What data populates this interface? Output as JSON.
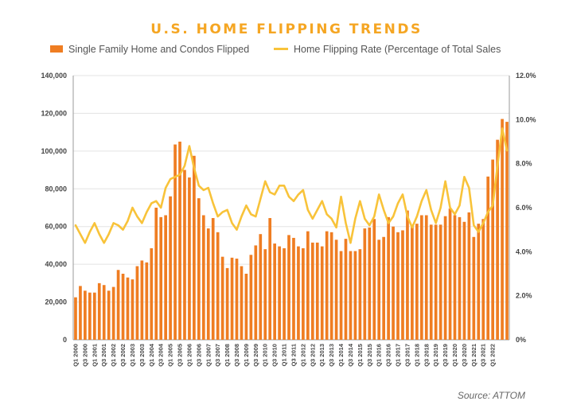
{
  "colors": {
    "title": "#F5A623",
    "bars": "#EF7D22",
    "line": "#F8C33A",
    "axis": "#999999",
    "grid": "#e3e3e3"
  },
  "chart_data": {
    "type": "bar",
    "title": "U.S. HOME FLIPPING TRENDS",
    "source": "Source: ATTOM",
    "legend": {
      "placement": "top"
    },
    "series": [
      {
        "name": "Single Family Home and Condos Flipped",
        "type": "bar",
        "axis": "left",
        "values": [
          22500,
          28500,
          26000,
          25000,
          25000,
          30000,
          29000,
          26000,
          28000,
          37000,
          35000,
          33000,
          32000,
          39000,
          42000,
          41000,
          48500,
          70000,
          65000,
          66000,
          76000,
          103500,
          105000,
          90000,
          86000,
          97500,
          75000,
          66000,
          59000,
          64500,
          57000,
          44000,
          38000,
          43500,
          43000,
          39000,
          35000,
          45000,
          50000,
          56000,
          48000,
          64500,
          51000,
          49500,
          48500,
          55500,
          54000,
          49500,
          48500,
          57500,
          51500,
          51500,
          49500,
          57500,
          57000,
          53000,
          47000,
          53500,
          47000,
          47000,
          48000,
          59000,
          59500,
          64000,
          53000,
          54500,
          65000,
          60000,
          57000,
          58000,
          68500,
          60500,
          61500,
          66000,
          66000,
          61000,
          61000,
          61000,
          65500,
          69500,
          66000,
          65000,
          62500,
          67500,
          54500,
          61500,
          64000,
          86500,
          95500,
          106000,
          117000,
          115500
        ]
      },
      {
        "name": "Home Flipping Rate (Percentage of Total Sales",
        "type": "line",
        "axis": "right",
        "values": [
          5.2,
          4.8,
          4.4,
          4.9,
          5.3,
          4.8,
          4.4,
          4.8,
          5.3,
          5.2,
          5.0,
          5.4,
          6.0,
          5.6,
          5.3,
          5.8,
          6.2,
          6.3,
          6.0,
          6.9,
          7.3,
          7.4,
          7.5,
          7.9,
          8.8,
          7.8,
          7.0,
          6.8,
          6.9,
          6.2,
          5.6,
          5.8,
          5.9,
          5.3,
          5.0,
          5.6,
          6.1,
          5.7,
          5.6,
          6.4,
          7.2,
          6.7,
          6.6,
          7.0,
          7.0,
          6.5,
          6.3,
          6.6,
          6.8,
          5.9,
          5.5,
          5.9,
          6.3,
          5.7,
          5.5,
          5.1,
          6.5,
          5.3,
          4.4,
          5.5,
          6.3,
          5.5,
          5.2,
          5.6,
          6.6,
          5.9,
          5.3,
          5.6,
          6.2,
          6.6,
          5.6,
          5.1,
          5.6,
          6.3,
          6.8,
          5.9,
          5.3,
          6.0,
          7.2,
          6.0,
          5.7,
          6.1,
          7.4,
          6.9,
          5.2,
          4.9,
          5.3,
          5.8,
          6.1,
          7.9,
          9.6,
          8.6
        ]
      }
    ],
    "y_left": {
      "ylim": [
        0,
        140000
      ],
      "ticks": [
        "0",
        "20,000",
        "40,000",
        "60,000",
        "80,000",
        "100,000",
        "120,000",
        "140,000"
      ]
    },
    "y_right": {
      "ylim": [
        0,
        12
      ],
      "ticks": [
        "0%",
        "2.0%",
        "4.0%",
        "6.0%",
        "8.0%",
        "10.0%",
        "12.0%"
      ]
    },
    "x_tick_labels": [
      "Q1 2000",
      "Q3 2000",
      "Q1 2001",
      "Q3 2001",
      "Q1 2002",
      "Q3 2002",
      "Q1 2003",
      "Q3 2003",
      "Q1 2004",
      "Q3 2004",
      "Q1 2005",
      "Q3 2005",
      "Q1 2006",
      "Q3 2006",
      "Q1 2007",
      "Q3 2007",
      "Q1 2008",
      "Q3 2008",
      "Q1 2009",
      "Q3 2009",
      "Q1 2010",
      "Q3 2010",
      "Q1 2011",
      "Q3 2011",
      "Q1 2012",
      "Q3 2012",
      "Q1 2013",
      "Q3 2013",
      "Q1 2014",
      "Q3 2014",
      "Q1 2015",
      "Q3 2015",
      "Q1 2016",
      "Q3 2016",
      "Q1 2017",
      "Q3 2017",
      "Q1 2018",
      "Q3 2018",
      "Q1 2019",
      "Q3 2019",
      "Q1 2020",
      "Q3 2020",
      "Q1 2021",
      "Q3 2021",
      "Q1 2022"
    ],
    "grid": true
  }
}
